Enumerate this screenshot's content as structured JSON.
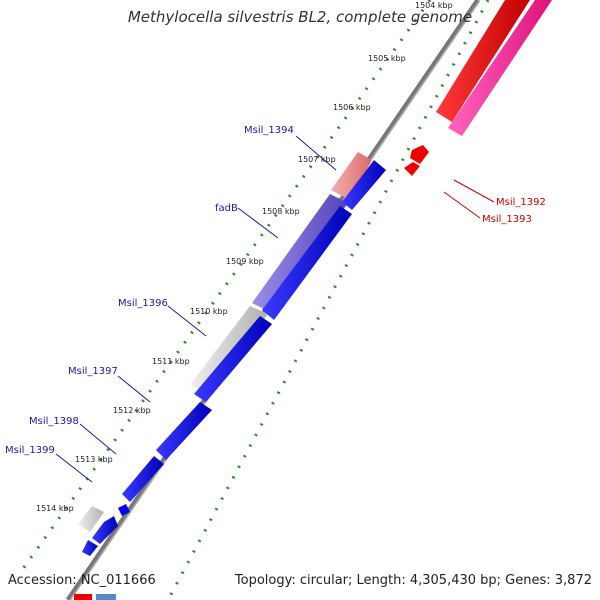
{
  "title": "Methylocella silvestris BL2, complete genome",
  "accession": "Accession: NC_011666",
  "summary": "Topology: circular; Length: 4,305,430 bp; Genes: 3,872",
  "colors": {
    "backbone": "#777777",
    "tick_dots": "#2a8a2a",
    "forward_gene": "#0000ee",
    "reverse_gene": "#ee0000",
    "reverse_gene_alt": "#ff2aa0",
    "forward_label": "#1a1aaa",
    "reverse_label": "#cc0000",
    "gray_gene": "#cccccc",
    "pink_feature": "#ee8888",
    "violet_feature": "#7766cc"
  },
  "ticks": [
    {
      "label": "1504 kbp"
    },
    {
      "label": "1505 kbp"
    },
    {
      "label": "1506 kbp"
    },
    {
      "label": "1507 kbp"
    },
    {
      "label": "1508 kbp"
    },
    {
      "label": "1509 kbp"
    },
    {
      "label": "1510 kbp"
    },
    {
      "label": "1511 kbp"
    },
    {
      "label": "1512 kbp"
    },
    {
      "label": "1513 kbp"
    },
    {
      "label": "1514 kbp"
    }
  ],
  "gene_labels": {
    "msil_1392": "Msil_1392",
    "msil_1393": "Msil_1393",
    "msil_1394": "Msil_1394",
    "fadb": "fadB",
    "msil_1396": "Msil_1396",
    "msil_1397": "Msil_1397",
    "msil_1398": "Msil_1398",
    "msil_1399": "Msil_1399"
  }
}
